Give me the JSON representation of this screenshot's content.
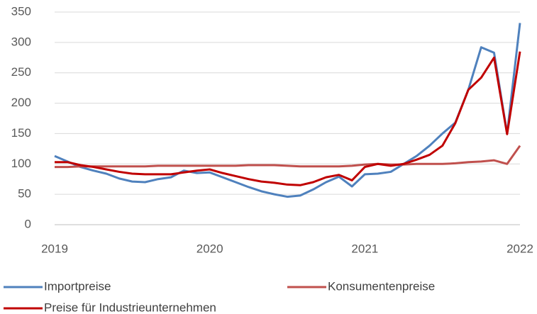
{
  "chart_data": {
    "type": "line",
    "x": [
      2019,
      2019.083,
      2019.167,
      2019.25,
      2019.333,
      2019.417,
      2019.5,
      2019.583,
      2019.667,
      2019.75,
      2019.833,
      2019.917,
      2020,
      2020.083,
      2020.167,
      2020.25,
      2020.333,
      2020.417,
      2020.5,
      2020.583,
      2020.667,
      2020.75,
      2020.833,
      2020.917,
      2021,
      2021.083,
      2021.167,
      2021.25,
      2021.333,
      2021.417,
      2021.5,
      2021.583,
      2021.667,
      2021.75,
      2021.833,
      2021.917,
      2022
    ],
    "series": [
      {
        "name": "Importpreise",
        "color": "#4f81bd",
        "values": [
          113,
          104,
          95,
          89,
          84,
          76,
          71,
          70,
          75,
          78,
          89,
          85,
          86,
          78,
          70,
          62,
          55,
          50,
          46,
          48,
          58,
          70,
          79,
          63,
          83,
          84,
          87,
          100,
          113,
          130,
          150,
          168,
          222,
          292,
          283,
          150,
          332
        ]
      },
      {
        "name": "Konsumentenpreise",
        "color": "#c0504d",
        "values": [
          95,
          95,
          96,
          96,
          96,
          96,
          96,
          96,
          97,
          97,
          97,
          97,
          97,
          97,
          97,
          98,
          98,
          98,
          97,
          96,
          96,
          96,
          96,
          97,
          99,
          100,
          99,
          99,
          100,
          100,
          100,
          101,
          103,
          104,
          106,
          100,
          130
        ]
      },
      {
        "name": "Preise für Industrieunternehmen",
        "color": "#c00000",
        "values": [
          103,
          103,
          98,
          95,
          91,
          87,
          84,
          83,
          83,
          83,
          86,
          89,
          91,
          85,
          80,
          75,
          71,
          69,
          66,
          65,
          70,
          78,
          82,
          73,
          95,
          100,
          97,
          100,
          107,
          115,
          130,
          167,
          222,
          242,
          275,
          149,
          285
        ]
      }
    ],
    "xlim": [
      2019,
      2022
    ],
    "xticks": [
      2019,
      2020,
      2021,
      2022
    ],
    "ylim": [
      0,
      350
    ],
    "yticks": [
      0,
      50,
      100,
      150,
      200,
      250,
      300,
      350
    ],
    "grid": true,
    "legend": "bottom"
  }
}
